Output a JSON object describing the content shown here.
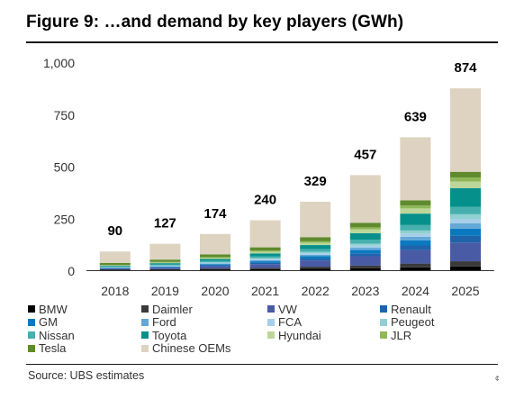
{
  "figure": {
    "title": "Figure 9: …and demand by key players (GWh)",
    "source": "Source:  UBS estimates",
    "corner_mark": "¢"
  },
  "chart_data": {
    "type": "bar",
    "stacked": true,
    "categories": [
      "2018",
      "2019",
      "2020",
      "2021",
      "2022",
      "2023",
      "2024",
      "2025"
    ],
    "totals": [
      90,
      127,
      174,
      240,
      329,
      457,
      639,
      874
    ],
    "ylim": [
      0,
      1000
    ],
    "yticks": [
      0,
      250,
      500,
      750,
      1000
    ],
    "ytick_labels": [
      "0",
      "250",
      "500",
      "750",
      "1,000"
    ],
    "grid": false,
    "legend_position": "bottom",
    "series": [
      {
        "name": "BMW",
        "color": "#000000",
        "values": [
          2,
          2,
          4,
          5,
          8,
          10,
          14,
          18
        ]
      },
      {
        "name": "Daimler",
        "color": "#3a3a3a",
        "values": [
          2,
          3,
          4,
          6,
          9,
          12,
          18,
          25
        ]
      },
      {
        "name": "VW",
        "color": "#4a5ba6",
        "values": [
          3,
          6,
          12,
          18,
          30,
          45,
          65,
          90
        ]
      },
      {
        "name": "Renault",
        "color": "#1f63ab",
        "values": [
          2,
          3,
          4,
          6,
          9,
          14,
          22,
          32
        ]
      },
      {
        "name": "GM",
        "color": "#0b79c0",
        "values": [
          2,
          3,
          5,
          8,
          11,
          16,
          25,
          35
        ]
      },
      {
        "name": "Ford",
        "color": "#62a8d8",
        "values": [
          1,
          2,
          3,
          5,
          7,
          11,
          17,
          25
        ]
      },
      {
        "name": "FCA",
        "color": "#a7cfe9",
        "values": [
          1,
          2,
          3,
          5,
          7,
          10,
          15,
          22
        ]
      },
      {
        "name": "Peugeot",
        "color": "#8fd0d0",
        "values": [
          1,
          2,
          3,
          5,
          7,
          10,
          15,
          22
        ]
      },
      {
        "name": "Nissan",
        "color": "#46b0ae",
        "values": [
          3,
          5,
          7,
          9,
          13,
          18,
          26,
          35
        ]
      },
      {
        "name": "Toyota",
        "color": "#06908c",
        "values": [
          4,
          6,
          9,
          14,
          20,
          32,
          55,
          90
        ]
      },
      {
        "name": "Hyundai",
        "color": "#bcd69a",
        "values": [
          2,
          3,
          5,
          8,
          11,
          18,
          25,
          32
        ]
      },
      {
        "name": "JLR",
        "color": "#8fb858",
        "values": [
          2,
          3,
          4,
          5,
          7,
          10,
          14,
          20
        ]
      },
      {
        "name": "Tesla",
        "color": "#5f8b2e",
        "values": [
          10,
          11,
          13,
          16,
          20,
          22,
          25,
          27
        ]
      },
      {
        "name": "Chinese OEMs",
        "color": "#ddd3c0",
        "values": [
          55,
          76,
          98,
          130,
          170,
          229,
          303,
          401
        ]
      }
    ]
  }
}
